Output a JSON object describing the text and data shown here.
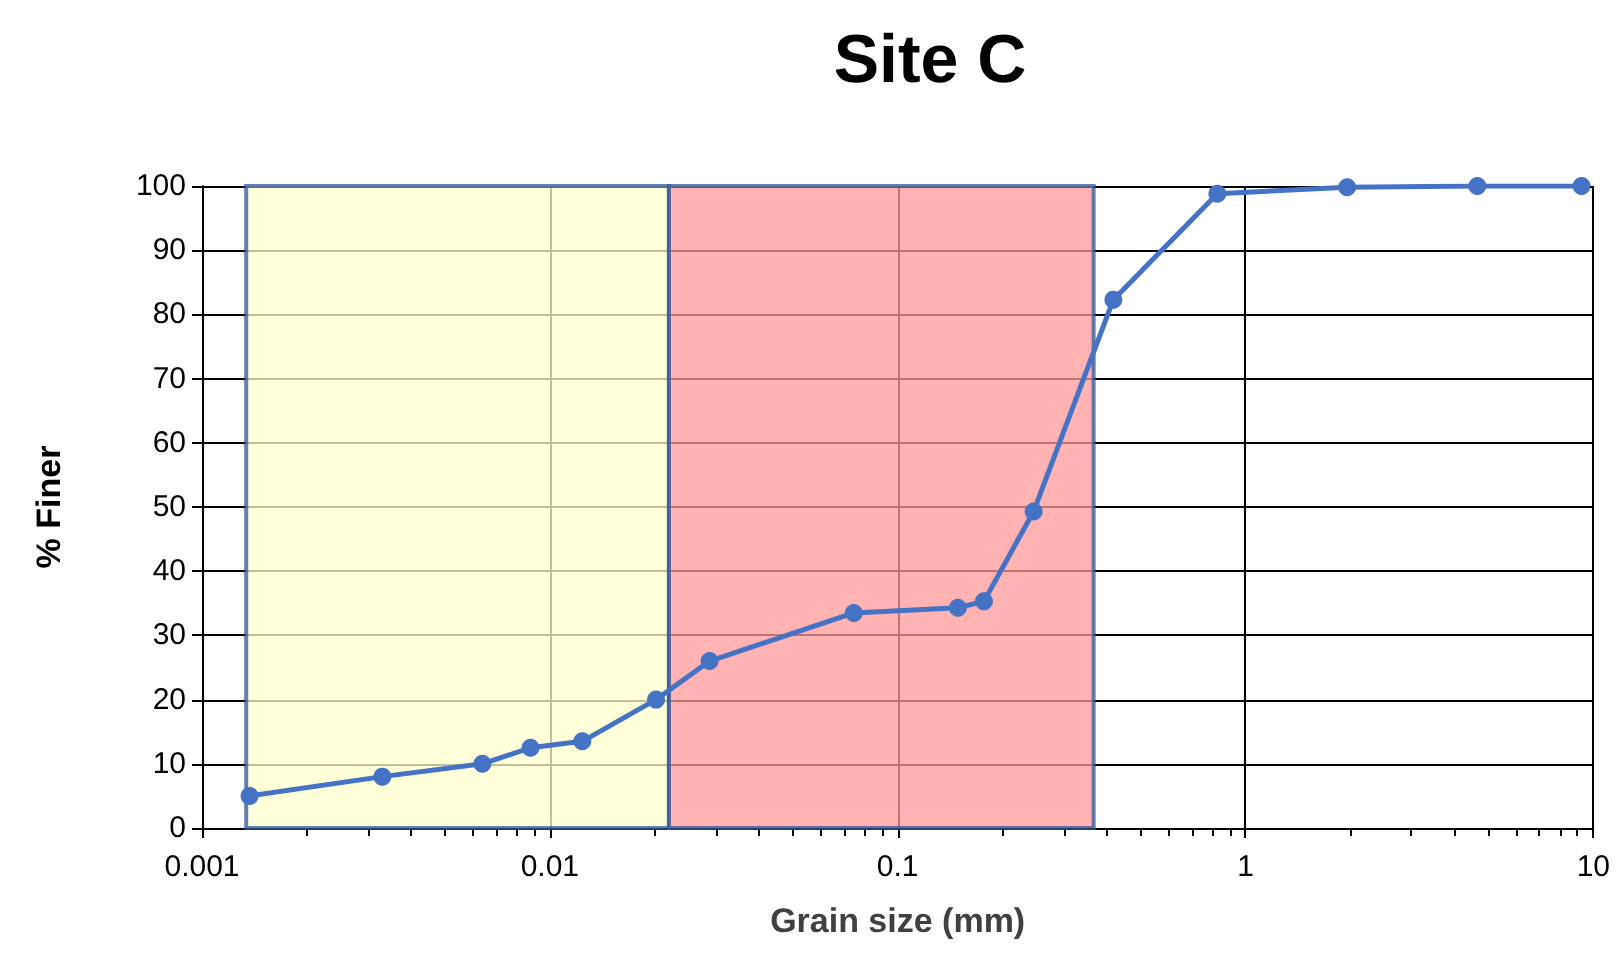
{
  "chart_data": {
    "type": "line",
    "title": "Site C",
    "xlabel": "Grain size (mm)",
    "ylabel": "% Finer",
    "x": [
      0.00137,
      0.0033,
      0.0064,
      0.0088,
      0.0124,
      0.0202,
      0.0288,
      0.0748,
      0.149,
      0.177,
      0.246,
      0.417,
      0.83,
      1.96,
      4.64,
      9.25
    ],
    "series": [
      {
        "color": "#4472c4",
        "values": [
          5,
          8,
          10,
          12.5,
          13.5,
          20,
          26,
          33.5,
          34.3,
          35.3,
          49.3,
          82.3,
          98.8,
          99.8,
          100,
          100
        ]
      }
    ],
    "log": "x",
    "xlim": [
      0.001,
      10
    ],
    "xticks": [
      0.001,
      0.01,
      0.1,
      1,
      10
    ],
    "ylim": [
      0,
      100
    ],
    "yticks": [
      0,
      10,
      20,
      30,
      40,
      50,
      60,
      70,
      80,
      90,
      100
    ],
    "grid": true,
    "marker": "circle",
    "line_style": "solid",
    "bands": [
      {
        "axis": "x",
        "from": 0.00134,
        "to": 0.022,
        "color": "#ffffcc"
      },
      {
        "axis": "x",
        "from": 0.022,
        "to": 0.366,
        "color": "#ff9999"
      }
    ]
  }
}
